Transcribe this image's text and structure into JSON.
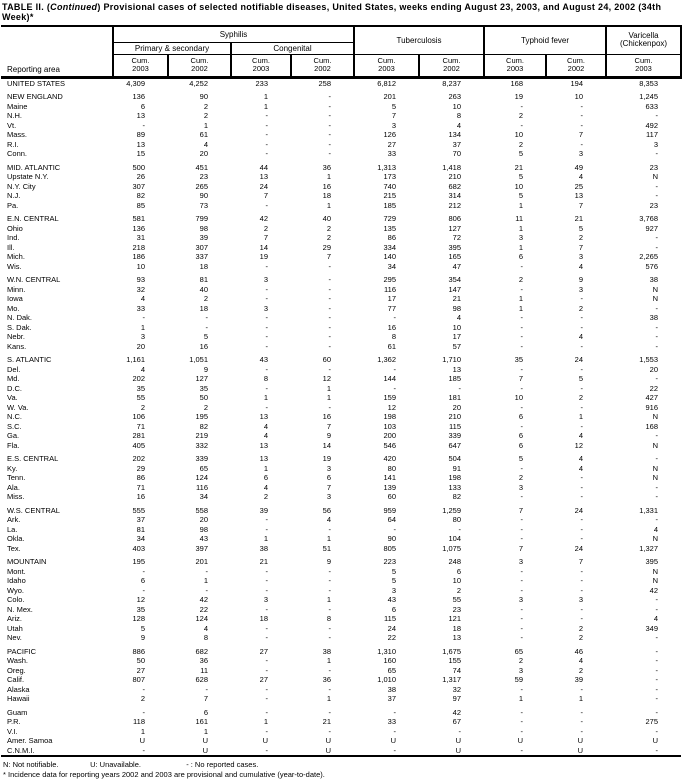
{
  "title": {
    "prefix": "TABLE II. (",
    "continued": "Continued",
    "rest": ") Provisional cases of selected notifiable diseases, United States, weeks ending August 23, 2003, and August 24, 2002 (34th Week)*"
  },
  "header": {
    "reporting_area": "Reporting area",
    "syphilis": "Syphilis",
    "primary_secondary": "Primary & secondary",
    "congenital": "Congenital",
    "tuberculosis": "Tuberculosis",
    "typhoid_fever": "Typhoid fever",
    "varicella_line1": "Varicella",
    "varicella_line2": "(Chickenpox)",
    "cum_label": "Cum.",
    "cum_years": [
      "2003",
      "2002",
      "2003",
      "2002",
      "2003",
      "2002",
      "2003",
      "2002",
      "2003"
    ]
  },
  "rows": [
    {
      "area": "UNITED STATES",
      "values": [
        "4,309",
        "4,252",
        "233",
        "258",
        "6,812",
        "8,237",
        "168",
        "194",
        "8,353"
      ]
    },
    {
      "area": "NEW ENGLAND",
      "gap": true,
      "values": [
        "136",
        "90",
        "1",
        "-",
        "201",
        "263",
        "19",
        "10",
        "1,245"
      ]
    },
    {
      "area": "Maine",
      "values": [
        "6",
        "2",
        "1",
        "-",
        "5",
        "10",
        "-",
        "-",
        "633"
      ]
    },
    {
      "area": "N.H.",
      "values": [
        "13",
        "2",
        "-",
        "-",
        "7",
        "8",
        "2",
        "-",
        "-"
      ]
    },
    {
      "area": "Vt.",
      "values": [
        "-",
        "1",
        "-",
        "-",
        "3",
        "4",
        "-",
        "-",
        "492"
      ]
    },
    {
      "area": "Mass.",
      "values": [
        "89",
        "61",
        "-",
        "-",
        "126",
        "134",
        "10",
        "7",
        "117"
      ]
    },
    {
      "area": "R.I.",
      "values": [
        "13",
        "4",
        "-",
        "-",
        "27",
        "37",
        "2",
        "-",
        "3"
      ]
    },
    {
      "area": "Conn.",
      "values": [
        "15",
        "20",
        "-",
        "-",
        "33",
        "70",
        "5",
        "3",
        "-"
      ]
    },
    {
      "area": "MID. ATLANTIC",
      "gap": true,
      "values": [
        "500",
        "451",
        "44",
        "36",
        "1,313",
        "1,418",
        "21",
        "49",
        "23"
      ]
    },
    {
      "area": "Upstate N.Y.",
      "values": [
        "26",
        "23",
        "13",
        "1",
        "173",
        "210",
        "5",
        "4",
        "N"
      ]
    },
    {
      "area": "N.Y. City",
      "values": [
        "307",
        "265",
        "24",
        "16",
        "740",
        "682",
        "10",
        "25",
        "-"
      ]
    },
    {
      "area": "N.J.",
      "values": [
        "82",
        "90",
        "7",
        "18",
        "215",
        "314",
        "5",
        "13",
        "-"
      ]
    },
    {
      "area": "Pa.",
      "values": [
        "85",
        "73",
        "-",
        "1",
        "185",
        "212",
        "1",
        "7",
        "23"
      ]
    },
    {
      "area": "E.N. CENTRAL",
      "gap": true,
      "values": [
        "581",
        "799",
        "42",
        "40",
        "729",
        "806",
        "11",
        "21",
        "3,768"
      ]
    },
    {
      "area": "Ohio",
      "values": [
        "136",
        "98",
        "2",
        "2",
        "135",
        "127",
        "1",
        "5",
        "927"
      ]
    },
    {
      "area": "Ind.",
      "values": [
        "31",
        "39",
        "7",
        "2",
        "86",
        "72",
        "3",
        "2",
        "-"
      ]
    },
    {
      "area": "Ill.",
      "values": [
        "218",
        "307",
        "14",
        "29",
        "334",
        "395",
        "1",
        "7",
        "-"
      ]
    },
    {
      "area": "Mich.",
      "values": [
        "186",
        "337",
        "19",
        "7",
        "140",
        "165",
        "6",
        "3",
        "2,265"
      ]
    },
    {
      "area": "Wis.",
      "values": [
        "10",
        "18",
        "-",
        "-",
        "34",
        "47",
        "-",
        "4",
        "576"
      ]
    },
    {
      "area": "W.N. CENTRAL",
      "gap": true,
      "values": [
        "93",
        "81",
        "3",
        "-",
        "295",
        "354",
        "2",
        "9",
        "38"
      ]
    },
    {
      "area": "Minn.",
      "values": [
        "32",
        "40",
        "-",
        "-",
        "116",
        "147",
        "-",
        "3",
        "N"
      ]
    },
    {
      "area": "Iowa",
      "values": [
        "4",
        "2",
        "-",
        "-",
        "17",
        "21",
        "1",
        "-",
        "N"
      ]
    },
    {
      "area": "Mo.",
      "values": [
        "33",
        "18",
        "3",
        "-",
        "77",
        "98",
        "1",
        "2",
        "-"
      ]
    },
    {
      "area": "N. Dak.",
      "values": [
        "-",
        "-",
        "-",
        "-",
        "-",
        "4",
        "-",
        "-",
        "38"
      ]
    },
    {
      "area": "S. Dak.",
      "values": [
        "1",
        "-",
        "-",
        "-",
        "16",
        "10",
        "-",
        "-",
        "-"
      ]
    },
    {
      "area": "Nebr.",
      "values": [
        "3",
        "5",
        "-",
        "-",
        "8",
        "17",
        "-",
        "4",
        "-"
      ]
    },
    {
      "area": "Kans.",
      "values": [
        "20",
        "16",
        "-",
        "-",
        "61",
        "57",
        "-",
        "-",
        "-"
      ]
    },
    {
      "area": "S. ATLANTIC",
      "gap": true,
      "values": [
        "1,161",
        "1,051",
        "43",
        "60",
        "1,362",
        "1,710",
        "35",
        "24",
        "1,553"
      ]
    },
    {
      "area": "Del.",
      "values": [
        "4",
        "9",
        "-",
        "-",
        "-",
        "13",
        "-",
        "-",
        "20"
      ]
    },
    {
      "area": "Md.",
      "values": [
        "202",
        "127",
        "8",
        "12",
        "144",
        "185",
        "7",
        "5",
        "-"
      ]
    },
    {
      "area": "D.C.",
      "values": [
        "35",
        "35",
        "-",
        "1",
        "-",
        "-",
        "-",
        "-",
        "22"
      ]
    },
    {
      "area": "Va.",
      "values": [
        "55",
        "50",
        "1",
        "1",
        "159",
        "181",
        "10",
        "2",
        "427"
      ]
    },
    {
      "area": "W. Va.",
      "values": [
        "2",
        "2",
        "-",
        "-",
        "12",
        "20",
        "-",
        "-",
        "916"
      ]
    },
    {
      "area": "N.C.",
      "values": [
        "106",
        "195",
        "13",
        "16",
        "198",
        "210",
        "6",
        "1",
        "N"
      ]
    },
    {
      "area": "S.C.",
      "values": [
        "71",
        "82",
        "4",
        "7",
        "103",
        "115",
        "-",
        "-",
        "168"
      ]
    },
    {
      "area": "Ga.",
      "values": [
        "281",
        "219",
        "4",
        "9",
        "200",
        "339",
        "6",
        "4",
        "-"
      ]
    },
    {
      "area": "Fla.",
      "values": [
        "405",
        "332",
        "13",
        "14",
        "546",
        "647",
        "6",
        "12",
        "N"
      ]
    },
    {
      "area": "E.S. CENTRAL",
      "gap": true,
      "values": [
        "202",
        "339",
        "13",
        "19",
        "420",
        "504",
        "5",
        "4",
        "-"
      ]
    },
    {
      "area": "Ky.",
      "values": [
        "29",
        "65",
        "1",
        "3",
        "80",
        "91",
        "-",
        "4",
        "N"
      ]
    },
    {
      "area": "Tenn.",
      "values": [
        "86",
        "124",
        "6",
        "6",
        "141",
        "198",
        "2",
        "-",
        "N"
      ]
    },
    {
      "area": "Ala.",
      "values": [
        "71",
        "116",
        "4",
        "7",
        "139",
        "133",
        "3",
        "-",
        "-"
      ]
    },
    {
      "area": "Miss.",
      "values": [
        "16",
        "34",
        "2",
        "3",
        "60",
        "82",
        "-",
        "-",
        "-"
      ]
    },
    {
      "area": "W.S. CENTRAL",
      "gap": true,
      "values": [
        "555",
        "558",
        "39",
        "56",
        "959",
        "1,259",
        "7",
        "24",
        "1,331"
      ]
    },
    {
      "area": "Ark.",
      "values": [
        "37",
        "20",
        "-",
        "4",
        "64",
        "80",
        "-",
        "-",
        "-"
      ]
    },
    {
      "area": "La.",
      "values": [
        "81",
        "98",
        "-",
        "-",
        "-",
        "-",
        "-",
        "-",
        "4"
      ]
    },
    {
      "area": "Okla.",
      "values": [
        "34",
        "43",
        "1",
        "1",
        "90",
        "104",
        "-",
        "-",
        "N"
      ]
    },
    {
      "area": "Tex.",
      "values": [
        "403",
        "397",
        "38",
        "51",
        "805",
        "1,075",
        "7",
        "24",
        "1,327"
      ]
    },
    {
      "area": "MOUNTAIN",
      "gap": true,
      "values": [
        "195",
        "201",
        "21",
        "9",
        "223",
        "248",
        "3",
        "7",
        "395"
      ]
    },
    {
      "area": "Mont.",
      "values": [
        "-",
        "-",
        "-",
        "-",
        "5",
        "6",
        "-",
        "-",
        "N"
      ]
    },
    {
      "area": "Idaho",
      "values": [
        "6",
        "1",
        "-",
        "-",
        "5",
        "10",
        "-",
        "-",
        "N"
      ]
    },
    {
      "area": "Wyo.",
      "values": [
        "-",
        "-",
        "-",
        "-",
        "3",
        "2",
        "-",
        "-",
        "42"
      ]
    },
    {
      "area": "Colo.",
      "values": [
        "12",
        "42",
        "3",
        "1",
        "43",
        "55",
        "3",
        "3",
        "-"
      ]
    },
    {
      "area": "N. Mex.",
      "values": [
        "35",
        "22",
        "-",
        "-",
        "6",
        "23",
        "-",
        "-",
        "-"
      ]
    },
    {
      "area": "Ariz.",
      "values": [
        "128",
        "124",
        "18",
        "8",
        "115",
        "121",
        "-",
        "-",
        "4"
      ]
    },
    {
      "area": "Utah",
      "values": [
        "5",
        "4",
        "-",
        "-",
        "24",
        "18",
        "-",
        "2",
        "349"
      ]
    },
    {
      "area": "Nev.",
      "values": [
        "9",
        "8",
        "-",
        "-",
        "22",
        "13",
        "-",
        "2",
        "-"
      ]
    },
    {
      "area": "PACIFIC",
      "gap": true,
      "values": [
        "886",
        "682",
        "27",
        "38",
        "1,310",
        "1,675",
        "65",
        "46",
        "-"
      ]
    },
    {
      "area": "Wash.",
      "values": [
        "50",
        "36",
        "-",
        "1",
        "160",
        "155",
        "2",
        "4",
        "-"
      ]
    },
    {
      "area": "Oreg.",
      "values": [
        "27",
        "11",
        "-",
        "-",
        "65",
        "74",
        "3",
        "2",
        "-"
      ]
    },
    {
      "area": "Calif.",
      "values": [
        "807",
        "628",
        "27",
        "36",
        "1,010",
        "1,317",
        "59",
        "39",
        "-"
      ]
    },
    {
      "area": "Alaska",
      "values": [
        "-",
        "-",
        "-",
        "-",
        "38",
        "32",
        "-",
        "-",
        "-"
      ]
    },
    {
      "area": "Hawaii",
      "values": [
        "2",
        "7",
        "-",
        "1",
        "37",
        "97",
        "1",
        "1",
        "-"
      ]
    },
    {
      "area": "Guam",
      "gap": true,
      "values": [
        "-",
        "6",
        "-",
        "-",
        "-",
        "42",
        "-",
        "-",
        "-"
      ]
    },
    {
      "area": "P.R.",
      "values": [
        "118",
        "161",
        "1",
        "21",
        "33",
        "67",
        "-",
        "-",
        "275"
      ]
    },
    {
      "area": "V.I.",
      "values": [
        "1",
        "1",
        "-",
        "-",
        "-",
        "-",
        "-",
        "-",
        "-"
      ]
    },
    {
      "area": "Amer. Samoa",
      "values": [
        "U",
        "U",
        "U",
        "U",
        "U",
        "U",
        "U",
        "U",
        "U"
      ]
    },
    {
      "area": "C.N.M.I.",
      "values": [
        "-",
        "U",
        "-",
        "U",
        "-",
        "U",
        "-",
        "U",
        "-"
      ]
    }
  ],
  "footnotes": {
    "n": "N: Not notifiable.",
    "u": "U: Unavailable.",
    "dash": "- : No reported cases.",
    "asterisk": "* Incidence data for reporting years 2002 and 2003 are provisional and cumulative (year-to-date)."
  },
  "colors": {
    "text": "#000000",
    "background": "#ffffff",
    "border": "#000000"
  }
}
